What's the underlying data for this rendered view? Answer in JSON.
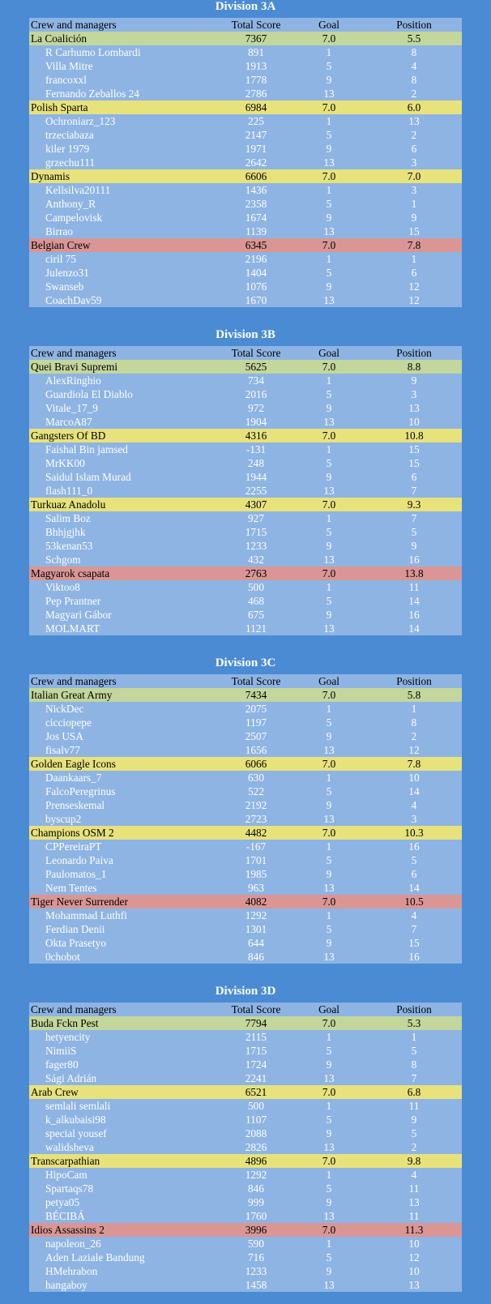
{
  "header": {
    "name": "Crew and managers",
    "score": "Total Score",
    "goal": "Goal",
    "position": "Position"
  },
  "divisions": [
    {
      "title": "Division 3A",
      "teams": [
        {
          "name": "La Coalición",
          "score": "7367",
          "goal": "7.0",
          "position": "5.5",
          "color": "#c3d69b",
          "players": [
            {
              "name": "R Carhumo Lombardi",
              "score": "891",
              "goal": "1",
              "position": "8"
            },
            {
              "name": "Villa Mitre",
              "score": "1913",
              "goal": "5",
              "position": "4"
            },
            {
              "name": "francoxxl",
              "score": "1778",
              "goal": "9",
              "position": "8"
            },
            {
              "name": "Fernando Zeballos 24",
              "score": "2786",
              "goal": "13",
              "position": "2"
            }
          ]
        },
        {
          "name": "Polish Sparta",
          "score": "6984",
          "goal": "7.0",
          "position": "6.0",
          "color": "#e7e27c",
          "players": [
            {
              "name": "Ochroniarz_123",
              "score": "225",
              "goal": "1",
              "position": "13"
            },
            {
              "name": "trzeciabaza",
              "score": "2147",
              "goal": "5",
              "position": "2"
            },
            {
              "name": "kiler 1979",
              "score": "1971",
              "goal": "9",
              "position": "6"
            },
            {
              "name": "grzechu111",
              "score": "2642",
              "goal": "13",
              "position": "3"
            }
          ]
        },
        {
          "name": "Dynamis",
          "score": "6606",
          "goal": "7.0",
          "position": "7.0",
          "color": "#e7e27c",
          "players": [
            {
              "name": "Kellsilva20111",
              "score": "1436",
              "goal": "1",
              "position": "3"
            },
            {
              "name": "Anthony_R",
              "score": "2358",
              "goal": "5",
              "position": "1"
            },
            {
              "name": "Campelovisk",
              "score": "1674",
              "goal": "9",
              "position": "9"
            },
            {
              "name": "Birrao",
              "score": "1139",
              "goal": "13",
              "position": "15"
            }
          ]
        },
        {
          "name": "Belgian Crew",
          "score": "6345",
          "goal": "7.0",
          "position": "7.8",
          "color": "#d99694",
          "players": [
            {
              "name": "ciril 75",
              "score": "2196",
              "goal": "1",
              "position": "1"
            },
            {
              "name": "Julenzo31",
              "score": "1404",
              "goal": "5",
              "position": "6"
            },
            {
              "name": "Swanseb",
              "score": "1076",
              "goal": "9",
              "position": "12"
            },
            {
              "name": "CoachDav59",
              "score": "1670",
              "goal": "13",
              "position": "12"
            }
          ]
        }
      ]
    },
    {
      "title": "Division 3B",
      "teams": [
        {
          "name": "Quei Bravi Supremi",
          "score": "5625",
          "goal": "7.0",
          "position": "8.8",
          "color": "#c3d69b",
          "players": [
            {
              "name": "AlexRinghio",
              "score": "734",
              "goal": "1",
              "position": "9"
            },
            {
              "name": "Guardiola El Diablo",
              "score": "2016",
              "goal": "5",
              "position": "3"
            },
            {
              "name": "Vitale_17_9",
              "score": "972",
              "goal": "9",
              "position": "13"
            },
            {
              "name": "MarcoA87",
              "score": "1904",
              "goal": "13",
              "position": "10"
            }
          ]
        },
        {
          "name": "Gangsters Of BD",
          "score": "4316",
          "goal": "7.0",
          "position": "10.8",
          "color": "#e7e27c",
          "players": [
            {
              "name": "Faishal Bin jamsed",
              "score": "-131",
              "goal": "1",
              "position": "15"
            },
            {
              "name": "MrKK00",
              "score": "248",
              "goal": "5",
              "position": "15"
            },
            {
              "name": "Saidul Islam Murad",
              "score": "1944",
              "goal": "9",
              "position": "6"
            },
            {
              "name": "flash111_0",
              "score": "2255",
              "goal": "13",
              "position": "7"
            }
          ]
        },
        {
          "name": "Turkuaz Anadolu",
          "score": "4307",
          "goal": "7.0",
          "position": "9.3",
          "color": "#e7e27c",
          "players": [
            {
              "name": "Salim Boz",
              "score": "927",
              "goal": "1",
              "position": "7"
            },
            {
              "name": "Bhhjgjhk",
              "score": "1715",
              "goal": "5",
              "position": "5"
            },
            {
              "name": "53kenan53",
              "score": "1233",
              "goal": "9",
              "position": "9"
            },
            {
              "name": "Schgom",
              "score": "432",
              "goal": "13",
              "position": "16"
            }
          ]
        },
        {
          "name": "Magyarok csapata",
          "score": "2763",
          "goal": "7.0",
          "position": "13.8",
          "color": "#d99694",
          "players": [
            {
              "name": "Viktoo8",
              "score": "500",
              "goal": "1",
              "position": "11"
            },
            {
              "name": "Pep Prantner",
              "score": "468",
              "goal": "5",
              "position": "14"
            },
            {
              "name": "Magyari Gábor",
              "score": "675",
              "goal": "9",
              "position": "16"
            },
            {
              "name": "MOLMART",
              "score": "1121",
              "goal": "13",
              "position": "14"
            }
          ]
        }
      ]
    },
    {
      "title": "Division 3C",
      "teams": [
        {
          "name": "Italian Great Army",
          "score": "7434",
          "goal": "7.0",
          "position": "5.8",
          "color": "#c3d69b",
          "players": [
            {
              "name": "NickDec",
              "score": "2075",
              "goal": "1",
              "position": "1"
            },
            {
              "name": "cicciopepe",
              "score": "1197",
              "goal": "5",
              "position": "8"
            },
            {
              "name": "Jos USA",
              "score": "2507",
              "goal": "9",
              "position": "2"
            },
            {
              "name": "fisalv77",
              "score": "1656",
              "goal": "13",
              "position": "12"
            }
          ]
        },
        {
          "name": "Golden Eagle Icons",
          "score": "6066",
          "goal": "7.0",
          "position": "7.8",
          "color": "#e7e27c",
          "players": [
            {
              "name": "Daankaars_7",
              "score": "630",
              "goal": "1",
              "position": "10"
            },
            {
              "name": "FalcoPeregrinus",
              "score": "522",
              "goal": "5",
              "position": "14"
            },
            {
              "name": "Prenseskemal",
              "score": "2192",
              "goal": "9",
              "position": "4"
            },
            {
              "name": "byscup2",
              "score": "2723",
              "goal": "13",
              "position": "3"
            }
          ]
        },
        {
          "name": "Champions OSM 2",
          "score": "4482",
          "goal": "7.0",
          "position": "10.3",
          "color": "#e7e27c",
          "players": [
            {
              "name": "CPPereiraPT",
              "score": "-167",
              "goal": "1",
              "position": "16"
            },
            {
              "name": "Leonardo Paiva",
              "score": "1701",
              "goal": "5",
              "position": "5"
            },
            {
              "name": "Paulomatos_1",
              "score": "1985",
              "goal": "9",
              "position": "6"
            },
            {
              "name": "Nem Tentes",
              "score": "963",
              "goal": "13",
              "position": "14"
            }
          ]
        },
        {
          "name": "Tiger Never Surrender",
          "score": "4082",
          "goal": "7.0",
          "position": "10.5",
          "color": "#d99694",
          "players": [
            {
              "name": "Mohammad Luthfi",
              "score": "1292",
              "goal": "1",
              "position": "4"
            },
            {
              "name": "Ferdian Denii",
              "score": "1301",
              "goal": "5",
              "position": "7"
            },
            {
              "name": "Okta Prasetyo",
              "score": "644",
              "goal": "9",
              "position": "15"
            },
            {
              "name": "0chobot",
              "score": "846",
              "goal": "13",
              "position": "16"
            }
          ]
        }
      ]
    },
    {
      "title": "Division 3D",
      "teams": [
        {
          "name": "Buda Fckn Pest",
          "score": "7794",
          "goal": "7.0",
          "position": "5.3",
          "color": "#c3d69b",
          "players": [
            {
              "name": "hetyencity",
              "score": "2115",
              "goal": "1",
              "position": "1"
            },
            {
              "name": "NimiiS",
              "score": "1715",
              "goal": "5",
              "position": "5"
            },
            {
              "name": "fager80",
              "score": "1724",
              "goal": "9",
              "position": "8"
            },
            {
              "name": "Sági Adrián",
              "score": "2241",
              "goal": "13",
              "position": "7"
            }
          ]
        },
        {
          "name": "Arab Crew",
          "score": "6521",
          "goal": "7.0",
          "position": "6.8",
          "color": "#e7e27c",
          "players": [
            {
              "name": "semlali semlali",
              "score": "500",
              "goal": "1",
              "position": "11"
            },
            {
              "name": "k_alkubaisi98",
              "score": "1107",
              "goal": "5",
              "position": "9"
            },
            {
              "name": "special yousef",
              "score": "2088",
              "goal": "9",
              "position": "5"
            },
            {
              "name": "walidsheva",
              "score": "2826",
              "goal": "13",
              "position": "2"
            }
          ]
        },
        {
          "name": "Transcarpathian",
          "score": "4896",
          "goal": "7.0",
          "position": "9.8",
          "color": "#e7e27c",
          "players": [
            {
              "name": "HipoCam",
              "score": "1292",
              "goal": "1",
              "position": "4"
            },
            {
              "name": "Spartaqs78",
              "score": "846",
              "goal": "5",
              "position": "11"
            },
            {
              "name": "petya05",
              "score": "999",
              "goal": "9",
              "position": "13"
            },
            {
              "name": "BÉCIBÁ",
              "score": "1760",
              "goal": "13",
              "position": "11"
            }
          ]
        },
        {
          "name": "Idios Assassins 2",
          "score": "3996",
          "goal": "7.0",
          "position": "11.3",
          "color": "#d99694",
          "players": [
            {
              "name": "napoleon_26",
              "score": "590",
              "goal": "1",
              "position": "10"
            },
            {
              "name": "Aden Laziale Bandung",
              "score": "716",
              "goal": "5",
              "position": "12"
            },
            {
              "name": "HMehrabon",
              "score": "1233",
              "goal": "9",
              "position": "10"
            },
            {
              "name": "hangaboy",
              "score": "1458",
              "goal": "13",
              "position": "13"
            }
          ]
        }
      ]
    }
  ]
}
